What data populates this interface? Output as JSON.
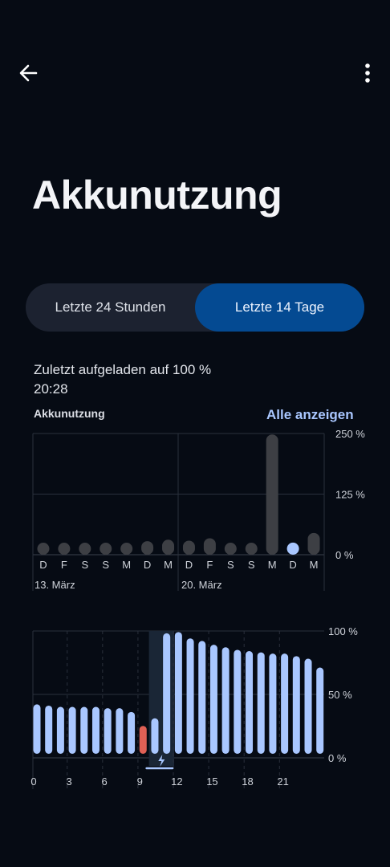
{
  "title": "Akkunutzung",
  "tabs": [
    {
      "label": "Letzte 24 Stunden",
      "selected": false
    },
    {
      "label": "Letzte 14 Tage",
      "selected": true
    }
  ],
  "last_charged": {
    "line1": "Zuletzt aufgeladen auf 100 %",
    "line2": "20:28"
  },
  "usage_section": {
    "label": "Akkunutzung",
    "show_all": "Alle anzeigen"
  },
  "icons": {
    "back": "arrow-left-icon",
    "more": "more-vert-icon",
    "charging": "bolt-icon"
  },
  "colors": {
    "accent": "#044a92",
    "bar_highlight": "#a9c7ff",
    "bar_default": "#3d3f44",
    "bar_low": "#e06055"
  },
  "chart_data": [
    {
      "type": "bar",
      "categories": [
        "D",
        "F",
        "S",
        "S",
        "M",
        "D",
        "M",
        "D",
        "F",
        "S",
        "S",
        "M",
        "D",
        "M"
      ],
      "values": [
        18,
        20,
        16,
        24,
        24,
        28,
        31,
        29,
        34,
        18,
        19,
        248,
        25,
        45
      ],
      "highlight_index": 12,
      "ylim": [
        0,
        250
      ],
      "yticks": [
        "250 %",
        "125 %",
        "0 %"
      ],
      "date_labels": [
        "13. März",
        "20. März"
      ]
    },
    {
      "type": "bar",
      "xtick_labels": [
        "0",
        "3",
        "6",
        "9",
        "12",
        "15",
        "18",
        "21"
      ],
      "values": [
        39,
        38,
        37,
        37,
        37,
        37,
        36,
        36,
        33,
        22,
        28,
        95,
        96,
        91,
        89,
        86,
        84,
        82,
        81,
        80,
        79,
        79,
        77,
        75,
        68
      ],
      "low_index": 9,
      "charging_range": [
        10,
        11
      ],
      "ylim": [
        0,
        100
      ],
      "yticks": [
        "100 %",
        "50 %",
        "0 %"
      ]
    }
  ]
}
